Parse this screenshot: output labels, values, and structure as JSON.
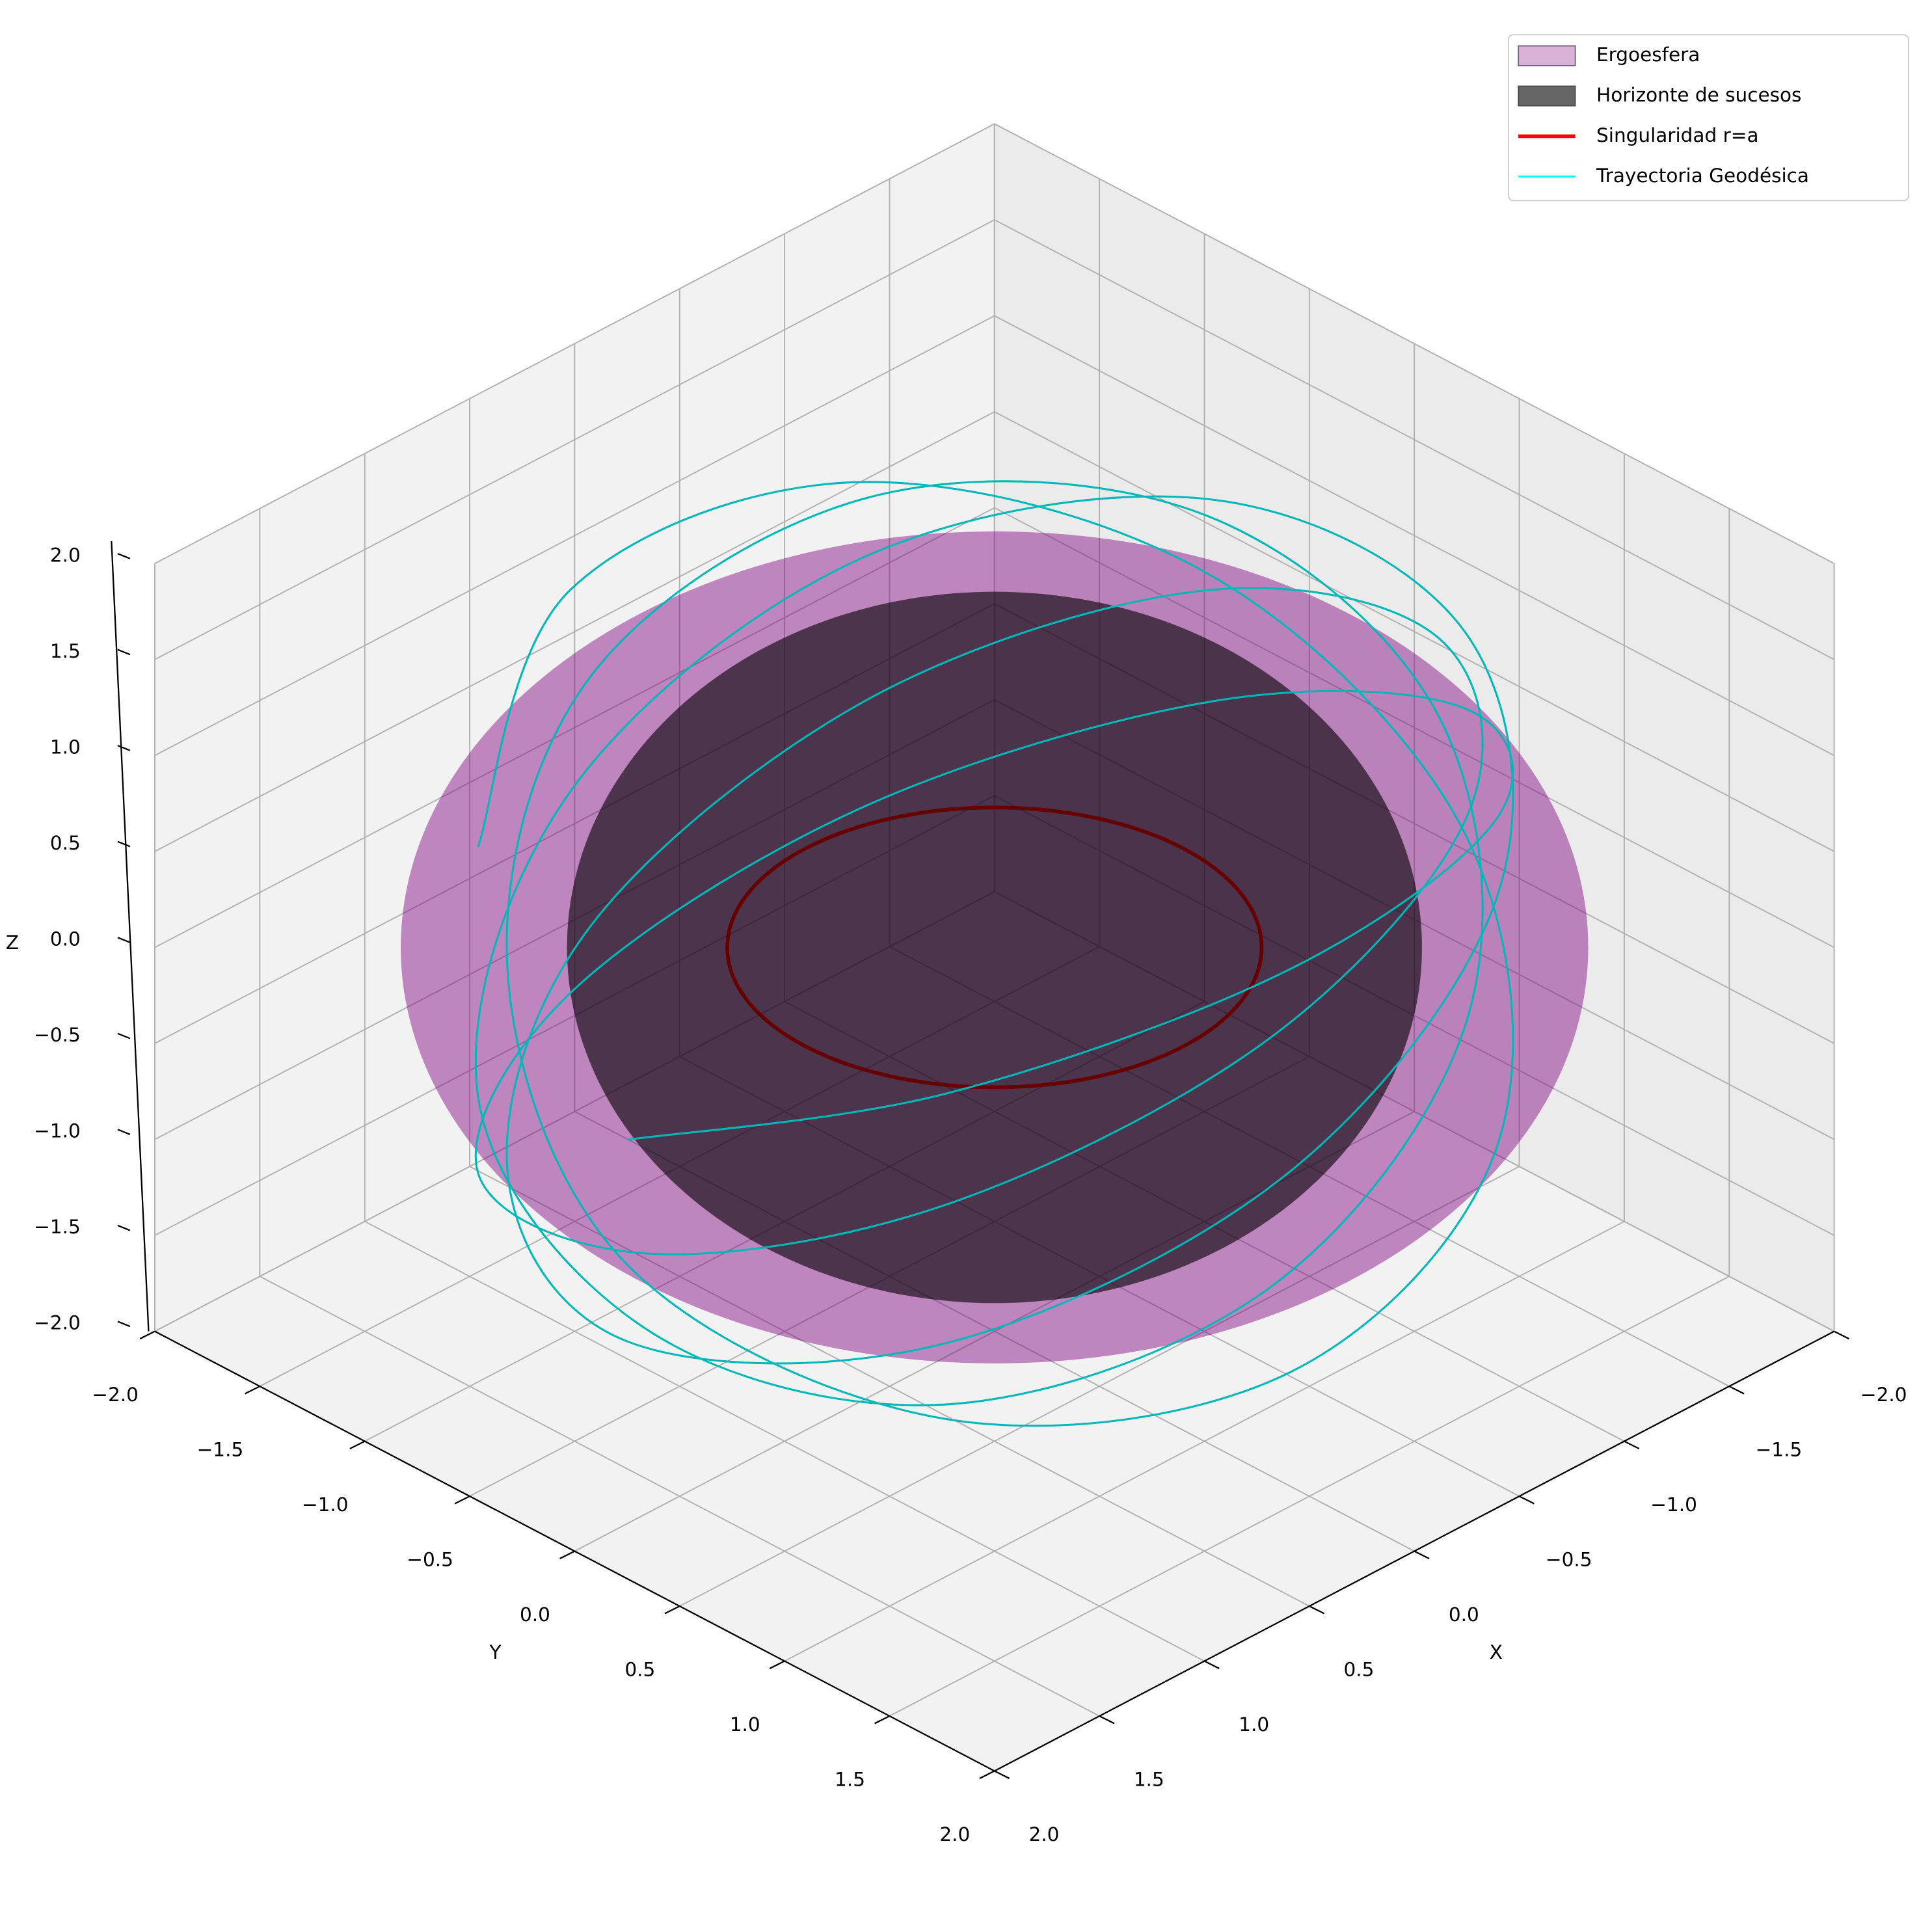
{
  "chart_data": {
    "type": "surface3d",
    "xlabel": "X",
    "ylabel": "Y",
    "zlabel": "Z",
    "xlim": [
      -2,
      2
    ],
    "ylim": [
      -2,
      2
    ],
    "zlim": [
      -2,
      2
    ],
    "xticks": [
      {
        "value": -2,
        "label": "−2.0"
      },
      {
        "value": -1.5,
        "label": "−1.5"
      },
      {
        "value": -1,
        "label": "−1.0"
      },
      {
        "value": -0.5,
        "label": "−0.5"
      },
      {
        "value": 0,
        "label": "0.0"
      },
      0.5,
      {
        "value": 1,
        "label": "1.0"
      },
      1.5,
      {
        "value": 2,
        "label": "2.0"
      }
    ],
    "yticks": [
      {
        "value": -2,
        "label": "−2.0"
      },
      {
        "value": -1.5,
        "label": "−1.5"
      },
      {
        "value": -1,
        "label": "−1.0"
      },
      {
        "value": -0.5,
        "label": "−0.5"
      },
      {
        "value": 0,
        "label": "0.0"
      },
      0.5,
      {
        "value": 1,
        "label": "1.0"
      },
      1.5,
      {
        "value": 2,
        "label": "2.0"
      }
    ],
    "zticks": [
      {
        "value": -2,
        "label": "−2.0"
      },
      {
        "value": -1.5,
        "label": "−1.5"
      },
      {
        "value": -1,
        "label": "−1.0"
      },
      {
        "value": -0.5,
        "label": "−0.5"
      },
      {
        "value": 0,
        "label": "0.0"
      },
      0.5,
      {
        "value": 1,
        "label": "1.0"
      },
      1.5,
      {
        "value": 2,
        "label": "2.0"
      }
    ],
    "grid": true,
    "legend": "upper right",
    "ergosphere": {
      "name": "Ergoesfera",
      "color": "#800080",
      "equatorial_radius": 2.0,
      "polar_radius": 1.44
    },
    "horizon": {
      "name": "Horizonte de sucesos",
      "color": "#000000",
      "radius": 1.44
    },
    "singularity": {
      "name": "Singularidad r=a",
      "color": "#ff0000",
      "radius": 0.9
    },
    "trajectory": {
      "name": "Trayectoria Geodésica",
      "color": "#00ffff",
      "x": [
        1.75,
        1.34,
        0.3,
        -0.88,
        -1.64,
        -1.64,
        -0.88,
        0.3,
        1.34,
        1.65,
        1.26,
        0.29,
        -0.83,
        -1.55,
        -1.55,
        -0.83,
        0.29,
        1.26,
        1.75,
        1.34,
        0.3,
        -0.88,
        -1.64,
        -1.64,
        -0.88,
        0.3,
        1.34,
        1.65,
        1.26,
        0.29,
        -0.83,
        -1.55,
        -1.55,
        -0.83,
        0.29,
        1.26,
        1.75,
        1.34,
        0.3,
        -0.88,
        -1.64,
        -1.64,
        -0.88,
        0.3,
        1.34
      ],
      "y": [
        0,
        1.12,
        1.72,
        1.52,
        0.6,
        -0.6,
        -1.52,
        -1.72,
        -1.12,
        0,
        1.06,
        1.63,
        1.43,
        0.56,
        -0.56,
        -1.43,
        -1.63,
        -1.06,
        0,
        1.12,
        1.72,
        1.52,
        0.6,
        -0.6,
        -1.52,
        -1.72,
        -1.12,
        0,
        1.06,
        1.63,
        1.43,
        0.56,
        -0.56,
        -1.43,
        -1.63,
        -1.06,
        0,
        1.12,
        1.72,
        1.52,
        0.6,
        -0.6,
        -1.52,
        -1.72,
        -1.12
      ],
      "z": [
        0,
        0.65,
        1.05,
        1.05,
        0.65,
        0,
        -0.65,
        -1.05,
        -1.05,
        -0.65,
        0,
        0.65,
        1.05,
        1.05,
        0.65,
        0,
        -0.65,
        -1.05,
        -1.05,
        -0.65,
        0,
        0.65,
        1.05,
        1.05,
        0.65,
        0,
        -0.65,
        -1.05,
        -1.05,
        -0.65,
        0,
        0.65,
        1.05,
        1.05,
        0.65,
        0,
        -0.65,
        -1.05,
        -1.05,
        -0.65,
        0,
        0.65,
        1.05,
        1.05,
        0.65
      ]
    }
  }
}
